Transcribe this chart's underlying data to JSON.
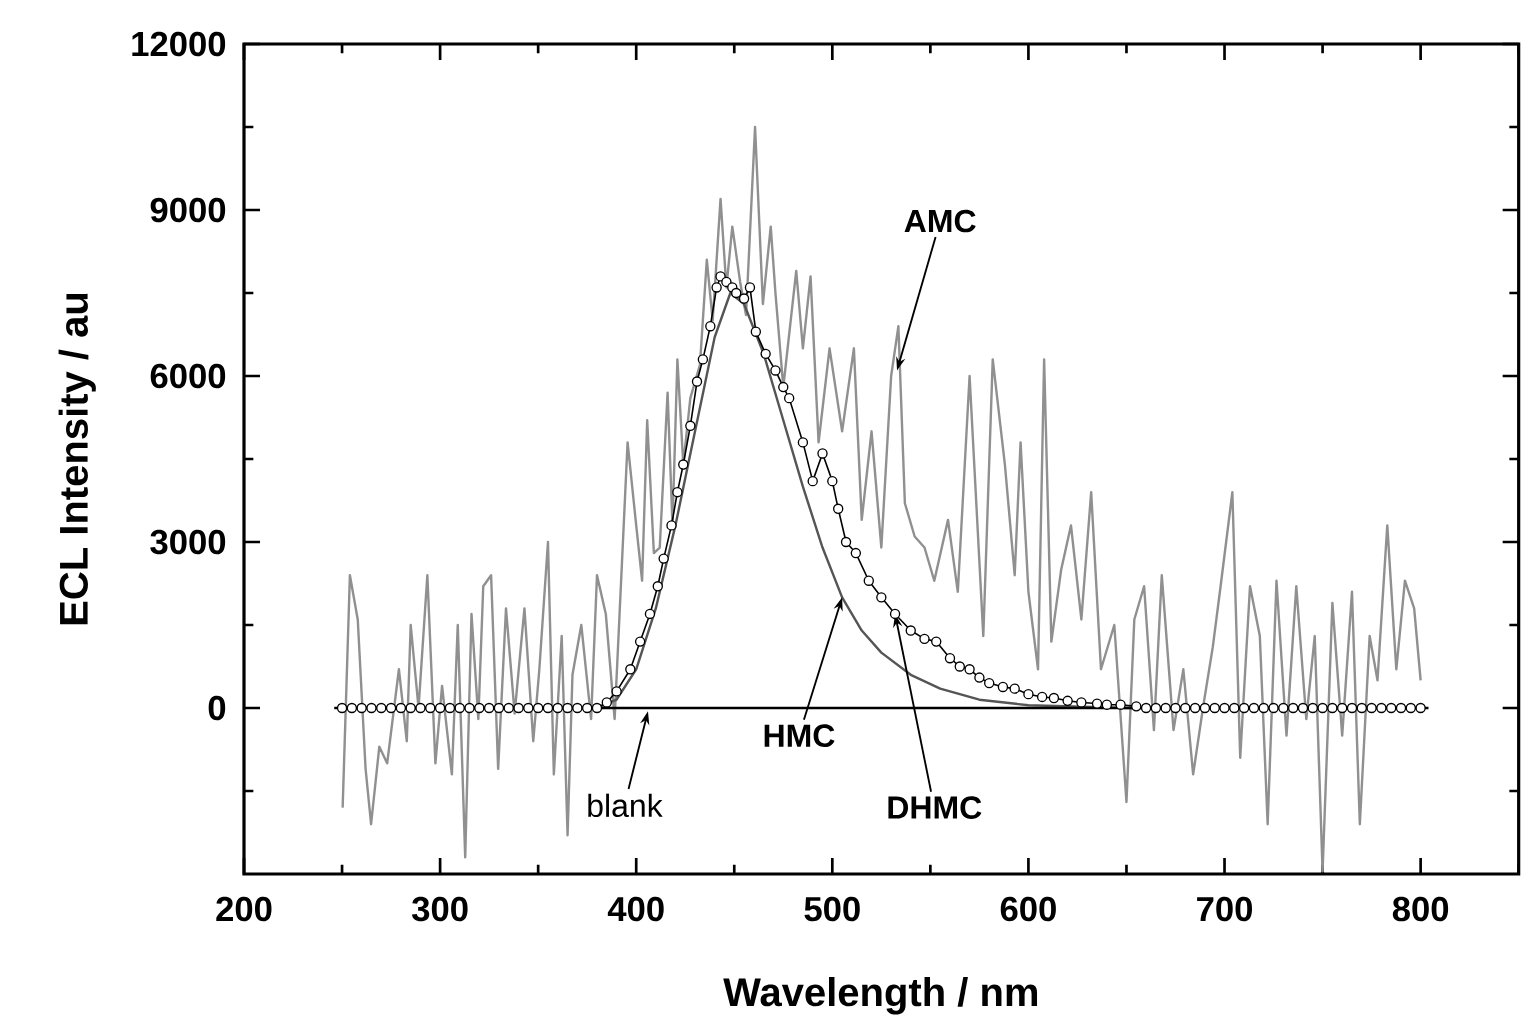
{
  "chart_data": {
    "type": "line",
    "xlabel": "Wavelength / nm",
    "ylabel": "ECL Intensity / au",
    "xlim": [
      200,
      850
    ],
    "ylim": [
      -3000,
      12000
    ],
    "xticks": [
      200,
      300,
      400,
      500,
      600,
      700,
      800
    ],
    "yticks": [
      0,
      3000,
      6000,
      9000,
      12000
    ],
    "grid": false,
    "series": [
      {
        "color": "#909090",
        "x": [
          250.3,
          254,
          258,
          262,
          264.8,
          269,
          273,
          279,
          283,
          285,
          289,
          293.5,
          297.6,
          301,
          306,
          309,
          312.8,
          316,
          319.5,
          322,
          326,
          329.6,
          333.6,
          338,
          343,
          347.5,
          350.6,
          355,
          358,
          362,
          365,
          367.5,
          372,
          377,
          380,
          384.5,
          389,
          395.6,
          400,
          403,
          405.6,
          409,
          412,
          416,
          418.5,
          421,
          424,
          427.6,
          432.5,
          436,
          439,
          443,
          446,
          449,
          453,
          456,
          460.6,
          464.6,
          468.6,
          471,
          475,
          481.6,
          485,
          488.9,
          493,
          498.6,
          505,
          511,
          515,
          520,
          525,
          530,
          533.7,
          537,
          542,
          547,
          552,
          559,
          564,
          570,
          577,
          581.8,
          588,
          593,
          596,
          600,
          604.9,
          608,
          611.7,
          616.7,
          621.7,
          627,
          632,
          637,
          643.8,
          650,
          654,
          659,
          664,
          668,
          674,
          679,
          684,
          689,
          694,
          698,
          704,
          708,
          713,
          718,
          722,
          726.5,
          731.6,
          736.6,
          741.7,
          746,
          750,
          755,
          760,
          765,
          769,
          774,
          778,
          783,
          787.6,
          792,
          796.7,
          800
        ],
        "values": [
          -1800,
          2400,
          1600,
          -1100,
          -2100,
          -700,
          -1000,
          700,
          -600,
          1500,
          0,
          2400,
          -1000,
          400,
          -1200,
          1500,
          -2700,
          1700,
          -200,
          2200,
          2400,
          -1100,
          1800,
          -100,
          1800,
          -600,
          700,
          3000,
          -1200,
          1300,
          -2300,
          600,
          1500,
          -200,
          2400,
          1700,
          -200,
          4800,
          3300,
          2300,
          5200,
          2800,
          2900,
          5700,
          3300,
          6300,
          4400,
          5600,
          6200,
          8100,
          7000,
          9200,
          7600,
          8700,
          7700,
          7100,
          10500,
          7300,
          8700,
          7500,
          5800,
          7900,
          6500,
          7800,
          4800,
          6500,
          5000,
          6500,
          3400,
          5000,
          2900,
          6000,
          6900,
          3700,
          3100,
          2900,
          2300,
          3400,
          2100,
          6000,
          1300,
          6300,
          4400,
          2400,
          4800,
          2100,
          700,
          6300,
          1200,
          2500,
          3300,
          1600,
          3900,
          700,
          1500,
          -1700,
          1600,
          2200,
          -400,
          2400,
          -400,
          700,
          -1200,
          0,
          1100,
          2200,
          3900,
          -900,
          2200,
          1300,
          -2100,
          2300,
          -500,
          2200,
          -200,
          1300,
          -2950,
          1900,
          -500,
          2100,
          -2100,
          1300,
          500,
          3300,
          700,
          2300,
          1800,
          500
        ]
      },
      {
        "color": "#555555",
        "x": [
          250,
          380,
          390,
          400,
          410,
          420,
          430,
          440,
          448,
          455,
          465,
          475,
          485,
          495,
          505,
          515,
          525,
          540,
          555,
          575,
          600,
          650,
          800
        ],
        "values": [
          0,
          0,
          150,
          700,
          1800,
          3300,
          5000,
          6700,
          7500,
          7300,
          6400,
          5200,
          4000,
          2900,
          2000,
          1400,
          1000,
          600,
          350,
          150,
          50,
          0,
          0
        ]
      },
      {
        "color": "#000000",
        "marker": "circle",
        "x": [
          250,
          255,
          260,
          265,
          270,
          275,
          280,
          285,
          290,
          295,
          300,
          305,
          310,
          315,
          320,
          325,
          330,
          335,
          340,
          345,
          350,
          355,
          360,
          365,
          370,
          375,
          380,
          385,
          390,
          397,
          402,
          407,
          411,
          414,
          418,
          421,
          424,
          427.6,
          431,
          434,
          437.8,
          441,
          443,
          446,
          449,
          451,
          455,
          458,
          461,
          466,
          471,
          475,
          478,
          485,
          490,
          495,
          500,
          503,
          507,
          512,
          518.6,
          525,
          532,
          540,
          547,
          553,
          560,
          565,
          570,
          575,
          580,
          587,
          593,
          600,
          607,
          613,
          620,
          627,
          635,
          640,
          647,
          655,
          660,
          665,
          670,
          675,
          680,
          685,
          690,
          695,
          700,
          705,
          710,
          715,
          720,
          725,
          730,
          735,
          740,
          745,
          750,
          755,
          760,
          765,
          770,
          775,
          780,
          785,
          790,
          795,
          800
        ],
        "values": [
          0,
          0,
          0,
          0,
          0,
          0,
          0,
          0,
          0,
          0,
          0,
          0,
          0,
          0,
          0,
          0,
          0,
          0,
          0,
          0,
          0,
          0,
          0,
          0,
          0,
          0,
          0,
          100,
          300,
          700,
          1200,
          1700,
          2200,
          2700,
          3300,
          3900,
          4400,
          5100,
          5900,
          6300,
          6900,
          7600,
          7800,
          7700,
          7600,
          7500,
          7400,
          7600,
          6800,
          6400,
          6100,
          5800,
          5600,
          4800,
          4100,
          4600,
          4100,
          3600,
          3000,
          2800,
          2300,
          2000,
          1700,
          1400,
          1250,
          1200,
          900,
          750,
          700,
          550,
          450,
          380,
          350,
          250,
          200,
          180,
          130,
          100,
          80,
          60,
          60,
          30,
          0,
          0,
          0,
          0,
          0,
          0,
          0,
          0,
          0,
          0,
          0,
          0,
          0,
          0,
          0,
          0,
          0,
          0,
          0,
          0,
          0,
          0,
          0,
          0,
          0,
          0,
          0,
          0,
          0
        ]
      },
      {
        "color": "#000000",
        "x": [
          246,
          804
        ],
        "values": [
          0,
          0
        ]
      }
    ],
    "annotations": [
      {
        "text": "AMC",
        "x": 533,
        "y": 6100
      },
      {
        "text": "HMC",
        "x": 505,
        "y": 2000
      },
      {
        "text": "DHMC",
        "x": 532,
        "y": 1700
      },
      {
        "text": "blank",
        "x": 406,
        "y": -60
      }
    ]
  }
}
